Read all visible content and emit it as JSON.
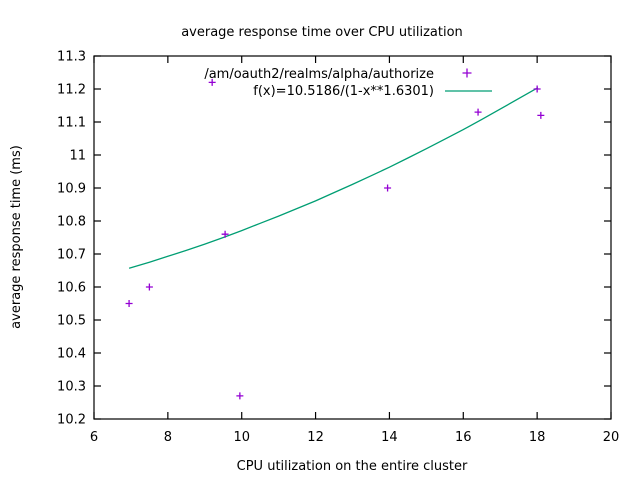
{
  "chart_data": {
    "type": "scatter",
    "title": "average response time over CPU utilization",
    "xlabel": "CPU utilization on the entire cluster",
    "ylabel": "average response time (ms)",
    "xlim": [
      6,
      20
    ],
    "ylim": [
      10.2,
      11.3
    ],
    "x_ticks": [
      6,
      8,
      10,
      12,
      14,
      16,
      18,
      20
    ],
    "x_tick_labels": [
      "6",
      "8",
      "10",
      "12",
      "14",
      "16",
      "18",
      "20"
    ],
    "y_ticks": [
      10.2,
      10.3,
      10.4,
      10.5,
      10.6,
      10.7,
      10.8,
      10.9,
      11.0,
      11.1,
      11.2,
      11.3
    ],
    "y_tick_labels": [
      "10.2",
      "10.3",
      "10.4",
      "10.5",
      "10.6",
      "10.7",
      "10.8",
      "10.9",
      "11",
      "11.1",
      "11.2",
      "11.3"
    ],
    "grid": false,
    "legend_position": "top-inside",
    "series": [
      {
        "name": "/am/oauth2/realms/alpha/authorize",
        "type": "scatter",
        "marker": "plus",
        "color": "#9400d3",
        "points": [
          [
            6.95,
            10.55
          ],
          [
            7.5,
            10.6
          ],
          [
            9.2,
            11.22
          ],
          [
            9.55,
            10.76
          ],
          [
            9.95,
            10.27
          ],
          [
            13.95,
            10.9
          ],
          [
            16.4,
            11.13
          ],
          [
            18.0,
            11.2
          ],
          [
            18.1,
            11.12
          ]
        ]
      },
      {
        "name": "f(x)=10.5186/(1-x**1.6301)",
        "type": "line",
        "color": "#009e73",
        "fit_params": {
          "numerator": 10.5186,
          "exponent": 1.6301
        },
        "points": [
          [
            6.95,
            10.657
          ],
          [
            7.5,
            10.675
          ],
          [
            8.0,
            10.693
          ],
          [
            8.5,
            10.711
          ],
          [
            9.0,
            10.73
          ],
          [
            9.5,
            10.75
          ],
          [
            10.0,
            10.771
          ],
          [
            10.5,
            10.793
          ],
          [
            11.0,
            10.815
          ],
          [
            11.5,
            10.838
          ],
          [
            12.0,
            10.861
          ],
          [
            12.5,
            10.886
          ],
          [
            13.0,
            10.911
          ],
          [
            13.5,
            10.937
          ],
          [
            14.0,
            10.963
          ],
          [
            14.5,
            10.991
          ],
          [
            15.0,
            11.019
          ],
          [
            15.5,
            11.048
          ],
          [
            16.0,
            11.077
          ],
          [
            16.5,
            11.108
          ],
          [
            17.0,
            11.139
          ],
          [
            17.5,
            11.171
          ],
          [
            18.02,
            11.204
          ]
        ]
      }
    ]
  },
  "colors": {
    "background": "#ffffff",
    "border": "#000000",
    "text": "#000000",
    "marker": "#9400d3",
    "fit_line": "#009e73"
  }
}
